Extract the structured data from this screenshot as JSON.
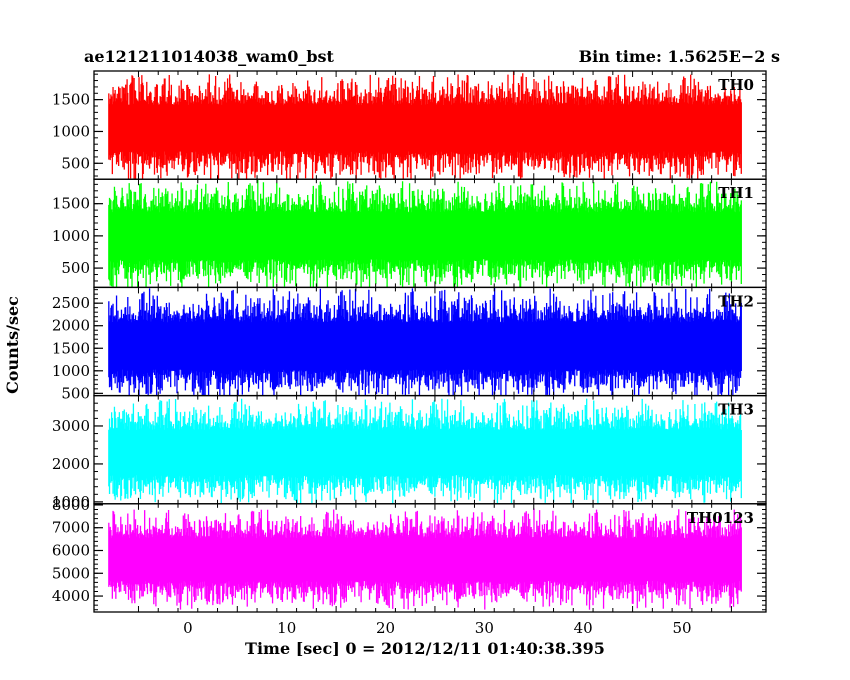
{
  "header": {
    "title": "ae121211014038_wam0_bst",
    "bin_time": "Bin time: 1.5625E−2 s"
  },
  "chart_data": {
    "type": "line",
    "xlabel": "Time [sec] 0 = 2012/12/11 01:40:38.395",
    "ylabel": "Counts/sec",
    "xlim": [
      -9.5,
      58.5
    ],
    "x_range": [
      -8.0,
      56.0
    ],
    "x_ticks": [
      0,
      10,
      20,
      30,
      40,
      50
    ],
    "x_tick_labels": [
      "0",
      "10",
      "20",
      "30",
      "40",
      "50"
    ],
    "panels": [
      {
        "name": "TH0",
        "color": "#ff0000",
        "ylim": [
          250,
          1950
        ],
        "y_ticks": [
          500,
          1000,
          1500
        ],
        "y_tick_labels": [
          "500",
          "1000",
          "1500"
        ],
        "mean": 1050,
        "typical_min": 380,
        "typical_max": 1700
      },
      {
        "name": "TH1",
        "color": "#00ff00",
        "ylim": [
          200,
          1880
        ],
        "y_ticks": [
          500,
          1000,
          1500
        ],
        "y_tick_labels": [
          "500",
          "1000",
          "1500"
        ],
        "mean": 1000,
        "typical_min": 330,
        "typical_max": 1650
      },
      {
        "name": "TH2",
        "color": "#0000ff",
        "ylim": [
          450,
          2850
        ],
        "y_ticks": [
          500,
          1000,
          1500,
          2000,
          2500
        ],
        "y_tick_labels": [
          "500",
          "1000",
          "1500",
          "2000",
          "2500"
        ],
        "mean": 1550,
        "typical_min": 650,
        "typical_max": 2550
      },
      {
        "name": "TH3",
        "color": "#00ffff",
        "ylim": [
          950,
          3800
        ],
        "y_ticks": [
          1000,
          2000,
          3000
        ],
        "y_tick_labels": [
          "1000",
          "2000",
          "3000"
        ],
        "mean": 2300,
        "typical_min": 1250,
        "typical_max": 3400
      },
      {
        "name": "TH0123",
        "color": "#ff00ff",
        "ylim": [
          3300,
          8050
        ],
        "y_ticks": [
          4000,
          5000,
          6000,
          7000,
          8000
        ],
        "y_tick_labels": [
          "4000",
          "5000",
          "6000",
          "7000",
          "8000"
        ],
        "mean": 5600,
        "typical_min": 3900,
        "typical_max": 7300
      }
    ]
  }
}
